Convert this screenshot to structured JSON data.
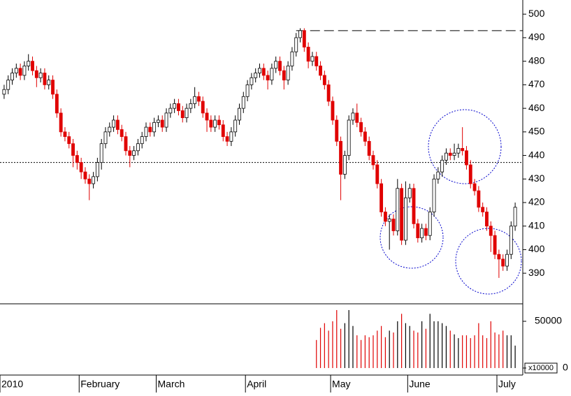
{
  "chart_data": {
    "type": "candlestick",
    "categories": [
      "2010",
      null,
      null,
      null,
      null,
      null,
      null,
      null,
      null,
      null,
      null,
      null,
      null,
      null,
      null,
      null,
      null,
      null,
      null,
      "February",
      null,
      null,
      null,
      null,
      null,
      null,
      null,
      null,
      null,
      null,
      null,
      null,
      null,
      null,
      null,
      null,
      null,
      null,
      "March",
      null,
      null,
      null,
      null,
      null,
      null,
      null,
      null,
      null,
      null,
      null,
      null,
      null,
      null,
      null,
      null,
      null,
      null,
      null,
      null,
      null,
      "April",
      null,
      null,
      null,
      null,
      null,
      null,
      null,
      null,
      null,
      null,
      null,
      null,
      null,
      null,
      null,
      null,
      null,
      null,
      null,
      null,
      "May",
      null,
      null,
      null,
      null,
      null,
      null,
      null,
      null,
      null,
      null,
      null,
      null,
      null,
      null,
      null,
      null,
      null,
      null,
      "June",
      null,
      null,
      null,
      null,
      null,
      null,
      null,
      null,
      null,
      null,
      null,
      null,
      null,
      null,
      null,
      null,
      null,
      null,
      null,
      null,
      null,
      "July",
      null,
      null,
      null,
      null
    ],
    "open": [
      466,
      468,
      472,
      475,
      477,
      474,
      478,
      480,
      476,
      473,
      475,
      470,
      472,
      466,
      458,
      450,
      448,
      445,
      440,
      437,
      433,
      430,
      428,
      431,
      437,
      445,
      450,
      452,
      455,
      451,
      448,
      442,
      440,
      442,
      445,
      448,
      452,
      450,
      454,
      455,
      452,
      458,
      460,
      462,
      459,
      456,
      460,
      462,
      465,
      463,
      458,
      455,
      452,
      455,
      453,
      448,
      446,
      450,
      455,
      460,
      465,
      470,
      473,
      475,
      477,
      474,
      472,
      477,
      480,
      476,
      472,
      478,
      484,
      490,
      493,
      486,
      480,
      482,
      478,
      474,
      470,
      463,
      455,
      446,
      432,
      440,
      455,
      458,
      454,
      450,
      446,
      440,
      436,
      428,
      416,
      412,
      413,
      408,
      426,
      404,
      422,
      426,
      411,
      405,
      409,
      406,
      416,
      430,
      433,
      438,
      441,
      440,
      441,
      443,
      442,
      436,
      428,
      425,
      418,
      416,
      410,
      406,
      398,
      396,
      393,
      398,
      410
    ],
    "high": [
      470,
      474,
      477,
      479,
      479,
      480,
      483,
      482,
      478,
      477,
      477,
      474,
      474,
      468,
      460,
      452,
      450,
      447,
      442,
      439,
      435,
      432,
      433,
      439,
      447,
      452,
      454,
      457,
      457,
      453,
      450,
      444,
      444,
      447,
      450,
      454,
      454,
      456,
      457,
      457,
      460,
      462,
      464,
      464,
      461,
      462,
      464,
      469,
      467,
      465,
      460,
      457,
      457,
      457,
      455,
      450,
      452,
      457,
      462,
      467,
      472,
      475,
      477,
      479,
      479,
      476,
      479,
      482,
      482,
      478,
      480,
      486,
      492,
      494,
      494,
      488,
      484,
      484,
      480,
      476,
      472,
      465,
      457,
      448,
      442,
      457,
      460,
      462,
      456,
      452,
      448,
      442,
      438,
      430,
      418,
      415,
      415,
      430,
      428,
      429,
      428,
      428,
      413,
      411,
      411,
      418,
      432,
      435,
      440,
      443,
      443,
      445,
      445,
      452,
      444,
      438,
      430,
      427,
      420,
      418,
      412,
      408,
      400,
      398,
      400,
      412,
      420
    ],
    "low": [
      464,
      466,
      470,
      473,
      472,
      472,
      476,
      474,
      469,
      471,
      468,
      468,
      464,
      456,
      448,
      446,
      443,
      435,
      434,
      430,
      428,
      421,
      426,
      429,
      434,
      443,
      448,
      450,
      449,
      446,
      440,
      435,
      438,
      440,
      443,
      446,
      448,
      448,
      452,
      450,
      450,
      456,
      458,
      457,
      454,
      454,
      458,
      460,
      461,
      456,
      450,
      450,
      450,
      451,
      446,
      444,
      444,
      448,
      453,
      458,
      463,
      468,
      471,
      473,
      472,
      468,
      470,
      475,
      474,
      468,
      470,
      476,
      482,
      488,
      484,
      477,
      478,
      476,
      472,
      468,
      461,
      453,
      444,
      421,
      430,
      438,
      453,
      452,
      448,
      444,
      438,
      434,
      426,
      414,
      410,
      400,
      406,
      406,
      402,
      402,
      420,
      409,
      403,
      403,
      404,
      404,
      414,
      428,
      431,
      436,
      438,
      438,
      439,
      440,
      434,
      426,
      423,
      416,
      414,
      408,
      399,
      396,
      388,
      391,
      391,
      396,
      408
    ],
    "close": [
      468,
      472,
      475,
      477,
      474,
      478,
      480,
      476,
      473,
      475,
      470,
      472,
      466,
      458,
      450,
      448,
      445,
      440,
      437,
      433,
      430,
      428,
      431,
      437,
      445,
      450,
      452,
      455,
      451,
      448,
      442,
      440,
      442,
      445,
      448,
      452,
      450,
      454,
      455,
      452,
      458,
      460,
      462,
      459,
      456,
      460,
      462,
      465,
      463,
      458,
      455,
      452,
      455,
      453,
      448,
      446,
      450,
      455,
      460,
      465,
      470,
      473,
      475,
      477,
      474,
      472,
      477,
      480,
      476,
      472,
      478,
      484,
      490,
      493,
      486,
      480,
      482,
      478,
      474,
      470,
      463,
      455,
      446,
      432,
      440,
      455,
      458,
      454,
      450,
      446,
      440,
      436,
      428,
      416,
      412,
      413,
      408,
      426,
      404,
      422,
      426,
      411,
      405,
      409,
      406,
      416,
      430,
      433,
      438,
      441,
      440,
      441,
      443,
      442,
      436,
      428,
      425,
      418,
      416,
      410,
      406,
      398,
      396,
      393,
      398,
      410,
      418
    ],
    "up_color": "#ffffff",
    "down_color": "#e00000",
    "ylim": [
      377,
      506
    ],
    "yticks": [
      390,
      400,
      410,
      420,
      430,
      440,
      450,
      460,
      470,
      480,
      490,
      500
    ],
    "hlines": [
      {
        "value": 493,
        "style": "dashed"
      },
      {
        "value": 437,
        "style": "dotted"
      }
    ],
    "volume": {
      "unit_label": "x10000",
      "ylim": [
        -7500,
        68700
      ],
      "yticks": [
        0,
        50000
      ],
      "values": [
        null,
        null,
        null,
        null,
        null,
        null,
        null,
        null,
        null,
        null,
        null,
        null,
        null,
        null,
        null,
        null,
        null,
        null,
        null,
        null,
        null,
        null,
        null,
        null,
        null,
        null,
        null,
        null,
        null,
        null,
        null,
        null,
        null,
        null,
        null,
        null,
        null,
        null,
        null,
        null,
        null,
        null,
        null,
        null,
        null,
        null,
        null,
        null,
        null,
        null,
        null,
        null,
        null,
        null,
        null,
        null,
        null,
        null,
        null,
        null,
        null,
        null,
        null,
        null,
        null,
        null,
        null,
        null,
        null,
        null,
        null,
        null,
        null,
        null,
        null,
        null,
        null,
        30000,
        43000,
        48000,
        40000,
        50000,
        62000,
        42000,
        48000,
        62000,
        45000,
        35000,
        30000,
        35000,
        33000,
        35000,
        40000,
        45000,
        33000,
        40000,
        38000,
        50000,
        58000,
        48000,
        45000,
        40000,
        38000,
        50000,
        42000,
        58000,
        50000,
        50000,
        48000,
        45000,
        40000,
        36000,
        32000,
        35000,
        35000,
        32000,
        35000,
        48000,
        35000,
        32000,
        50000,
        38000,
        36000,
        40000,
        35000,
        35000,
        24000
      ]
    }
  }
}
